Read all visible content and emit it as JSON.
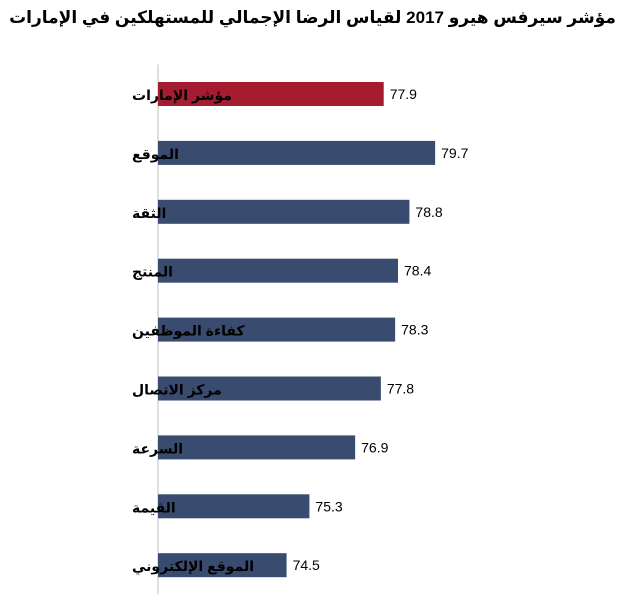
{
  "chart_data": {
    "type": "bar",
    "orientation": "horizontal",
    "title": "مؤشر سيرفس هيرو  2017 لقياس الرضا الإجمالي للمستهلكين في الإمارات",
    "xlabel": "",
    "ylabel": "",
    "xlim": [
      70,
      80.5
    ],
    "grid": false,
    "legend": "none",
    "categories": [
      "مؤشر الإمارات",
      "الموقع",
      "الثقة",
      "المنتج",
      "كفاءة الموظفين",
      "مركز الاتصال",
      "السرعة",
      "القيمة",
      "الموقع الإلكتروني"
    ],
    "values": [
      77.9,
      79.7,
      78.8,
      78.4,
      78.3,
      77.8,
      76.9,
      75.3,
      74.5
    ],
    "value_labels": [
      "77.9",
      "79.7",
      "78.8",
      "78.4",
      "78.3",
      "77.8",
      "76.9",
      "75.3",
      "74.5"
    ],
    "colors": {
      "highlight": "#A51C30",
      "default": "#394B6E"
    },
    "highlight_index": 0
  }
}
